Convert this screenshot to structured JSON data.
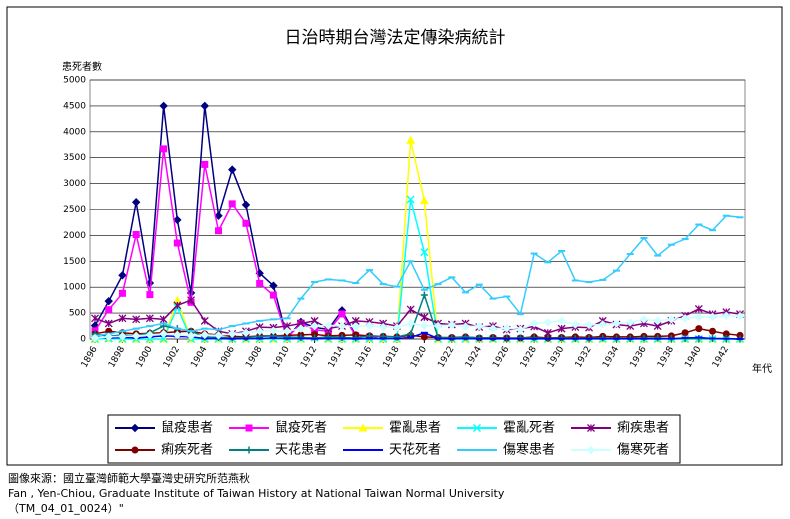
{
  "chart_data": {
    "type": "line",
    "title": "日治時期台灣法定傳染病統計",
    "y_label": "患死者數",
    "x_label": "年代",
    "xlim": [
      1896,
      1943
    ],
    "xticks": [
      1896,
      1898,
      1900,
      1902,
      1904,
      1906,
      1908,
      1910,
      1912,
      1914,
      1916,
      1918,
      1920,
      1922,
      1924,
      1926,
      1928,
      1930,
      1932,
      1934,
      1936,
      1938,
      1940,
      1942
    ],
    "ylim": [
      0,
      5000
    ],
    "yticks": [
      0,
      500,
      1000,
      1500,
      2000,
      2500,
      3000,
      3500,
      4000,
      4500,
      5000
    ],
    "grid": true,
    "x": [
      1896,
      1897,
      1898,
      1899,
      1900,
      1901,
      1902,
      1903,
      1904,
      1905,
      1906,
      1907,
      1908,
      1909,
      1910,
      1911,
      1912,
      1913,
      1914,
      1915,
      1916,
      1917,
      1918,
      1919,
      1920,
      1921,
      1922,
      1923,
      1924,
      1925,
      1926,
      1927,
      1928,
      1929,
      1930,
      1931,
      1932,
      1933,
      1934,
      1935,
      1936,
      1937,
      1938,
      1939,
      1940,
      1941,
      1942,
      1943
    ],
    "series": [
      {
        "name": "鼠疫患者",
        "color": "#000080",
        "marker": "diamond",
        "values": [
          258,
          730,
          1230,
          2640,
          1080,
          4500,
          2300,
          890,
          4500,
          2380,
          3270,
          2590,
          1270,
          1030,
          19,
          330,
          223,
          186,
          553,
          67,
          41,
          0,
          null,
          null,
          null,
          null,
          null,
          null,
          null,
          null,
          null,
          null,
          null,
          null,
          null,
          null,
          null,
          null,
          null,
          null,
          null,
          null,
          null,
          null,
          null,
          null,
          null,
          null
        ]
      },
      {
        "name": "鼠疫死者",
        "color": "#ff00ff",
        "marker": "square",
        "values": [
          157,
          566,
          882,
          2017,
          857,
          3670,
          1853,
          708,
          3370,
          2090,
          2609,
          2234,
          1073,
          847,
          19,
          304,
          176,
          152,
          484,
          61,
          35,
          0,
          null,
          null,
          null,
          null,
          null,
          null,
          null,
          null,
          null,
          null,
          null,
          null,
          null,
          null,
          null,
          null,
          null,
          null,
          null,
          null,
          null,
          null,
          null,
          null,
          null,
          null
        ]
      },
      {
        "name": "霍亂患者",
        "color": "#ffff00",
        "marker": "triangle",
        "values": [
          0,
          10,
          0,
          0,
          0,
          0,
          746,
          0,
          0,
          0,
          0,
          0,
          0,
          0,
          0,
          0,
          32,
          0,
          0,
          0,
          0,
          0,
          0,
          3836,
          2670,
          0,
          0,
          0,
          0,
          0,
          0,
          0,
          0,
          0,
          0,
          0,
          0,
          0,
          0,
          0,
          0,
          0,
          0,
          0,
          0,
          0,
          0,
          0
        ]
      },
      {
        "name": "霍亂死者",
        "color": "#00ffff",
        "marker": "x",
        "values": [
          0,
          8,
          0,
          0,
          0,
          0,
          613,
          0,
          0,
          0,
          0,
          0,
          0,
          0,
          0,
          0,
          25,
          0,
          0,
          0,
          0,
          0,
          0,
          2693,
          1675,
          0,
          0,
          0,
          0,
          0,
          0,
          0,
          0,
          0,
          0,
          0,
          0,
          0,
          0,
          0,
          0,
          0,
          0,
          0,
          0,
          0,
          0,
          0
        ]
      },
      {
        "name": "痢疾患者",
        "color": "#800080",
        "marker": "star",
        "values": [
          400,
          300,
          400,
          380,
          400,
          380,
          650,
          750,
          350,
          150,
          100,
          150,
          230,
          220,
          250,
          300,
          350,
          200,
          250,
          350,
          330,
          300,
          250,
          570,
          420,
          300,
          280,
          300,
          230,
          250,
          180,
          200,
          240,
          120,
          200,
          230,
          220,
          350,
          280,
          250,
          300,
          250,
          350,
          450,
          580,
          480,
          520,
          480
        ]
      },
      {
        "name": "痢疾死者",
        "color": "#800000",
        "marker": "circle",
        "values": [
          100,
          150,
          120,
          100,
          110,
          120,
          140,
          150,
          100,
          80,
          50,
          40,
          60,
          60,
          70,
          80,
          90,
          60,
          70,
          80,
          60,
          50,
          40,
          70,
          40,
          30,
          30,
          40,
          20,
          30,
          20,
          20,
          40,
          20,
          30,
          40,
          30,
          50,
          40,
          40,
          50,
          50,
          60,
          120,
          200,
          150,
          100,
          70
        ]
      },
      {
        "name": "天花患者",
        "color": "#008080",
        "marker": "plus",
        "values": [
          100,
          50,
          80,
          60,
          120,
          250,
          200,
          150,
          40,
          30,
          20,
          30,
          50,
          60,
          40,
          30,
          20,
          40,
          30,
          20,
          60,
          50,
          40,
          100,
          850,
          30,
          20,
          40,
          20,
          20,
          10,
          20,
          20,
          10,
          20,
          10,
          10,
          20,
          10,
          10,
          20,
          20,
          10,
          10,
          10,
          10,
          10,
          0
        ]
      },
      {
        "name": "天花死者",
        "color": "#0000ff",
        "marker": "dash",
        "values": [
          40,
          20,
          30,
          20,
          40,
          60,
          50,
          40,
          10,
          10,
          5,
          10,
          10,
          20,
          10,
          10,
          5,
          10,
          10,
          5,
          10,
          10,
          10,
          30,
          120,
          10,
          5,
          10,
          5,
          5,
          5,
          5,
          5,
          5,
          5,
          5,
          5,
          5,
          5,
          5,
          5,
          5,
          5,
          20,
          30,
          10,
          5,
          0
        ]
      },
      {
        "name": "傷寒患者",
        "color": "#33ccff",
        "marker": "dash",
        "values": [
          60,
          100,
          150,
          200,
          250,
          300,
          200,
          150,
          200,
          180,
          250,
          300,
          350,
          380,
          400,
          780,
          1100,
          1150,
          1130,
          1080,
          1330,
          1060,
          1010,
          1500,
          950,
          1060,
          1190,
          900,
          1050,
          780,
          820,
          480,
          1650,
          1480,
          1700,
          1130,
          1100,
          1140,
          1320,
          1640,
          1950,
          1610,
          1820,
          1930,
          2210,
          2100,
          2380,
          2350
        ]
      },
      {
        "name": "傷寒死者",
        "color": "#ccffff",
        "marker": "diamond",
        "values": [
          20,
          40,
          50,
          60,
          80,
          100,
          80,
          60,
          80,
          70,
          100,
          120,
          150,
          160,
          150,
          200,
          250,
          260,
          250,
          240,
          260,
          230,
          220,
          300,
          260,
          250,
          270,
          240,
          250,
          200,
          210,
          180,
          300,
          320,
          350,
          280,
          270,
          280,
          300,
          320,
          380,
          350,
          380,
          400,
          420,
          430,
          450,
          440
        ]
      }
    ]
  },
  "source": [
    "圖像來源：國立臺灣師範大學臺灣史研究所范燕秋",
    "Fan , Yen-Chiou, Graduate Institute of Taiwan History at National Taiwan Normal University",
    "（TM_04_01_0024）\""
  ]
}
